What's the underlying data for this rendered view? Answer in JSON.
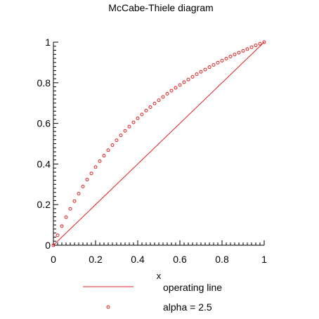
{
  "chart_data": {
    "type": "scatter",
    "title": "McCabe-Thiele diagram",
    "xlabel": "x",
    "ylabel": "",
    "xlim": [
      0,
      1
    ],
    "ylim": [
      0,
      1
    ],
    "x_ticks": [
      "0",
      "0.2",
      "0.4",
      "0.6",
      "0.8",
      "1"
    ],
    "y_ticks": [
      "0",
      "0.2",
      "0.4",
      "0.6",
      "0.8",
      "1"
    ],
    "x_tick_values": [
      0,
      0.2,
      0.4,
      0.6,
      0.8,
      1
    ],
    "y_tick_values": [
      0,
      0.2,
      0.4,
      0.6,
      0.8,
      1
    ],
    "grid": false,
    "legend_position": "bottom",
    "series": [
      {
        "name": "operating line",
        "kind": "line",
        "color": "#e02020",
        "x": [
          0,
          1
        ],
        "y": [
          0,
          1
        ]
      },
      {
        "name": "alpha = 2.5",
        "kind": "points",
        "color": "#e02020",
        "alpha": 2.5,
        "x": [
          0,
          0.02,
          0.04,
          0.06,
          0.08,
          0.1,
          0.12,
          0.14,
          0.16,
          0.18,
          0.2,
          0.22,
          0.24,
          0.26,
          0.28,
          0.3,
          0.32,
          0.34,
          0.36,
          0.38,
          0.4,
          0.42,
          0.44,
          0.46,
          0.48,
          0.5,
          0.52,
          0.54,
          0.56,
          0.58,
          0.6,
          0.62,
          0.64,
          0.66,
          0.68,
          0.7,
          0.72,
          0.74,
          0.76,
          0.78,
          0.8,
          0.82,
          0.84,
          0.86,
          0.88,
          0.9,
          0.92,
          0.94,
          0.96,
          0.98,
          1.0
        ],
        "y": [
          0,
          0.049,
          0.094,
          0.138,
          0.179,
          0.217,
          0.254,
          0.289,
          0.323,
          0.354,
          0.385,
          0.414,
          0.441,
          0.468,
          0.493,
          0.517,
          0.541,
          0.563,
          0.584,
          0.605,
          0.625,
          0.644,
          0.663,
          0.68,
          0.698,
          0.714,
          0.73,
          0.746,
          0.761,
          0.775,
          0.789,
          0.803,
          0.816,
          0.829,
          0.842,
          0.854,
          0.865,
          0.877,
          0.888,
          0.899,
          0.909,
          0.919,
          0.929,
          0.939,
          0.948,
          0.957,
          0.966,
          0.975,
          0.984,
          0.992,
          1.0
        ]
      }
    ]
  }
}
